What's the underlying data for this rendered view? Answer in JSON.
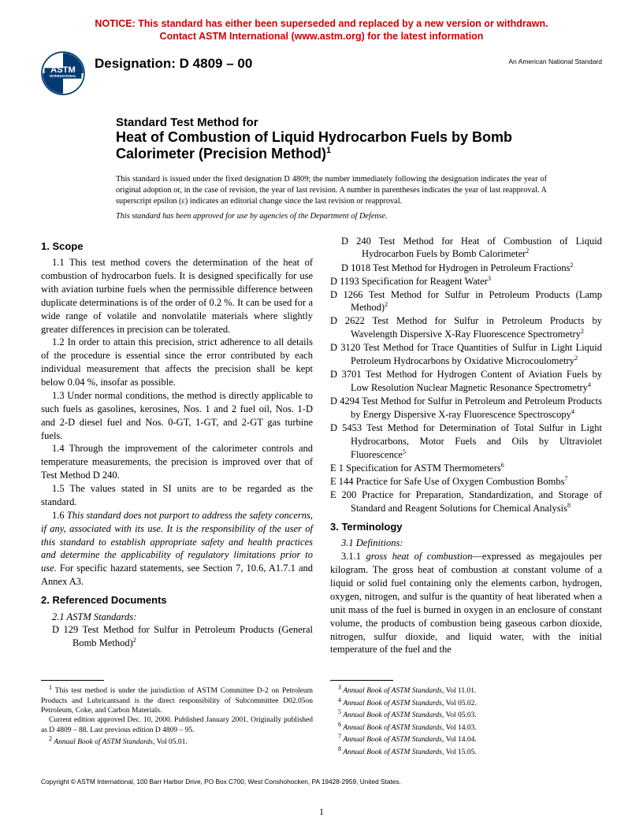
{
  "notice": {
    "line1": "NOTICE: This standard has either been superseded and replaced by a new version or withdrawn.",
    "line2": "Contact ASTM International (www.astm.org) for the latest information",
    "color": "#d00000"
  },
  "header": {
    "designation_label": "Designation: D 4809 – 00",
    "ans": "An American National Standard",
    "logo_text_top": "ASTM",
    "logo_text_bottom": "INTERNATIONAL"
  },
  "title": {
    "pre": "Standard Test Method for",
    "main": "Heat of Combustion of Liquid Hydrocarbon Fuels by Bomb Calorimeter (Precision Method)",
    "sup": "1"
  },
  "issuance": "This standard is issued under the fixed designation D 4809; the number immediately following the designation indicates the year of original adoption or, in the case of revision, the year of last revision. A number in parentheses indicates the year of last reapproval. A superscript epsilon (ε) indicates an editorial change since the last revision or reapproval.",
  "dod": "This standard has been approved for use by agencies of the Department of Defense.",
  "s1_head": "1. Scope",
  "s1_1": "1.1 This test method covers the determination of the heat of combustion of hydrocarbon fuels. It is designed specifically for use with aviation turbine fuels when the permissible difference between duplicate determinations is of the order of 0.2 %. It can be used for a wide range of volatile and nonvolatile materials where slightly greater differences in precision can be tolerated.",
  "s1_2": "1.2 In order to attain this precision, strict adherence to all details of the procedure is essential since the error contributed by each individual measurement that affects the precision shall be kept below 0.04 %, insofar as possible.",
  "s1_3": "1.3 Under normal conditions, the method is directly applicable to such fuels as gasolines, kerosines, Nos. 1 and 2 fuel oil, Nos. 1-D and 2-D diesel fuel and Nos. 0-GT, 1-GT, and 2-GT gas turbine fuels.",
  "s1_4": "1.4 Through the improvement of the calorimeter controls and temperature measurements, the precision is improved over that of Test Method D 240.",
  "s1_5": "1.5 The values stated in SI units are to be regarded as the standard.",
  "s1_6a": "1.6 ",
  "s1_6b": "This standard does not purport to address the safety concerns, if any, associated with its use. It is the responsibility of the user of this standard to establish appropriate safety and health practices and determine the applicability of regulatory limitations prior to use.",
  "s1_6c": " For specific hazard statements, see Section 7, 10.6, A1.7.1 and Annex A3.",
  "s2_head": "2. Referenced Documents",
  "s2_sub": "2.1 ASTM Standards:",
  "refs_left": [
    {
      "t": "D 129  Test Method for Sulfur in Petroleum Products (General Bomb Method)",
      "s": "2"
    },
    {
      "t": "D 240  Test Method for Heat of Combustion of Liquid Hydrocarbon Fuels by Bomb Calorimeter",
      "s": "2"
    },
    {
      "t": "D 1018  Test Method for Hydrogen in Petroleum Fractions",
      "s": "2"
    }
  ],
  "refs_right": [
    {
      "t": "D 1193  Specification for Reagent Water",
      "s": "3"
    },
    {
      "t": "D 1266  Test Method for Sulfur in Petroleum Products (Lamp Method)",
      "s": "2"
    },
    {
      "t": "D 2622  Test Method for Sulfur in Petroleum Products by Wavelength Dispersive X-Ray Fluorescence Spectrometry",
      "s": "2"
    },
    {
      "t": "D 3120  Test Method for Trace Quantities of Sulfur in Light Liquid Petroleum Hydrocarbons by Oxidative Microcoulometry",
      "s": "2"
    },
    {
      "t": "D 3701  Test Method for Hydrogen Content of Aviation Fuels by Low Resolution Nuclear Magnetic Resonance Spectrometry",
      "s": "4"
    },
    {
      "t": "D 4294  Test Method for Sulfur in Petroleum and Petroleum Products by Energy Dispersive X-ray Fluorescence Spectroscopy",
      "s": "4"
    },
    {
      "t": "D 5453  Test Method for Determination of Total Sulfur in Light Hydrocarbons, Motor Fuels and Oils by Ultraviolet Fluorescence",
      "s": "5"
    },
    {
      "t": "E 1  Specification for ASTM Thermometers",
      "s": "6"
    },
    {
      "t": "E 144  Practice for Safe Use of Oxygen Combustion Bombs",
      "s": "7"
    },
    {
      "t": "E 200  Practice for Preparation, Standardization, and Storage of Standard and Reagent Solutions for Chemical Analysis",
      "s": "8"
    }
  ],
  "s3_head": "3. Terminology",
  "s3_sub": "3.1 Definitions:",
  "s3_1_1a": "3.1.1 ",
  "s3_1_1b": "gross heat of combustion",
  "s3_1_1c": "—expressed as megajoules per kilogram. The gross heat of combustion at constant volume of a liquid or solid fuel containing only the elements carbon, hydrogen, oxygen, nitrogen, and sulfur is the quantity of heat liberated when a unit mass of the fuel is burned in oxygen in an enclosure of constant volume, the products of combustion being gaseous carbon dioxide, nitrogen, sulfur dioxide, and liquid water, with the initial temperature of the fuel and the",
  "footnotes_left": [
    {
      "s": "1",
      "t": " This test method is under the jurisdiction of ASTM Committee D-2 on Petroleum Products and Lubricantsand is the direct responsibility of Subcommittee D02.05on Petroleum, Coke, and Carbon Materials."
    },
    {
      "s": "",
      "t": "Current edition approved Dec. 10, 2000. Published January 2001. Originally published as D 4809 – 88. Last previous edition D 4809 – 95."
    },
    {
      "s": "2",
      "t": " Annual Book of ASTM Standards, Vol 05.01."
    }
  ],
  "footnotes_right": [
    {
      "s": "3",
      "t": " Annual Book of ASTM Standards, Vol 11.01."
    },
    {
      "s": "4",
      "t": " Annual Book of ASTM Standards, Vol 05.02."
    },
    {
      "s": "5",
      "t": " Annual Book of ASTM Standards, Vol 05.03."
    },
    {
      "s": "6",
      "t": " Annual Book of ASTM Standards, Vol 14.03."
    },
    {
      "s": "7",
      "t": " Annual Book of ASTM Standards, Vol 14.04."
    },
    {
      "s": "8",
      "t": " Annual Book of ASTM Standards, Vol 15.05."
    }
  ],
  "copyright": "Copyright © ASTM International, 100 Barr Harbor Drive, PO Box C700, West Conshohocken, PA 19428-2959, United States.",
  "pagenum": "1"
}
